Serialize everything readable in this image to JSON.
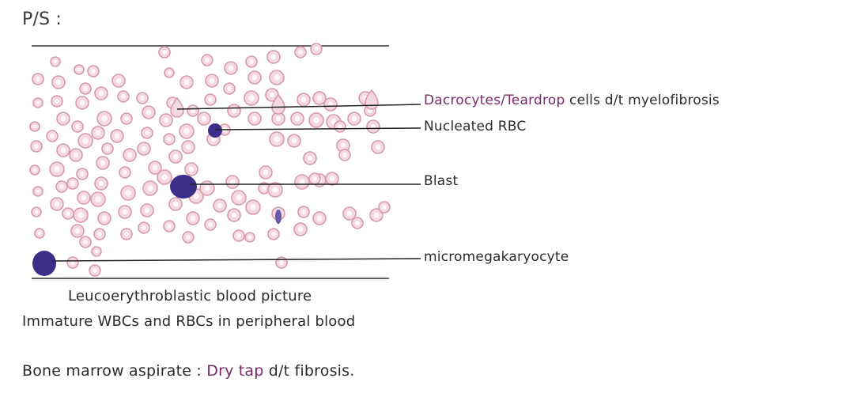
{
  "heading": "P/S :",
  "annotations": {
    "dacrocytes_term": "Dacrocytes/Teardrop",
    "dacrocytes_rest": " cells d/t myelofibrosis",
    "nucleated_rbc": "Nucleated RBC",
    "blast": "Blast",
    "micromegakaryocyte": "micromegakaryocyte"
  },
  "caption": {
    "line1": "Leucoerythroblastic blood picture",
    "line2": "Immature WBCs and RBCs in peripheral blood"
  },
  "bone_marrow": {
    "label": "Bone marrow aspirate :",
    "dry_tap": "Dry tap",
    "reason": "d/t fibrosis."
  },
  "colors": {
    "rbc_fill": "#f4d9e0",
    "rbc_stroke": "#d69aae",
    "rbc_center": "#fff6f8",
    "nucleus": "#3b2f8a",
    "purple_text": "#7a2a6a",
    "line": "#222222"
  }
}
